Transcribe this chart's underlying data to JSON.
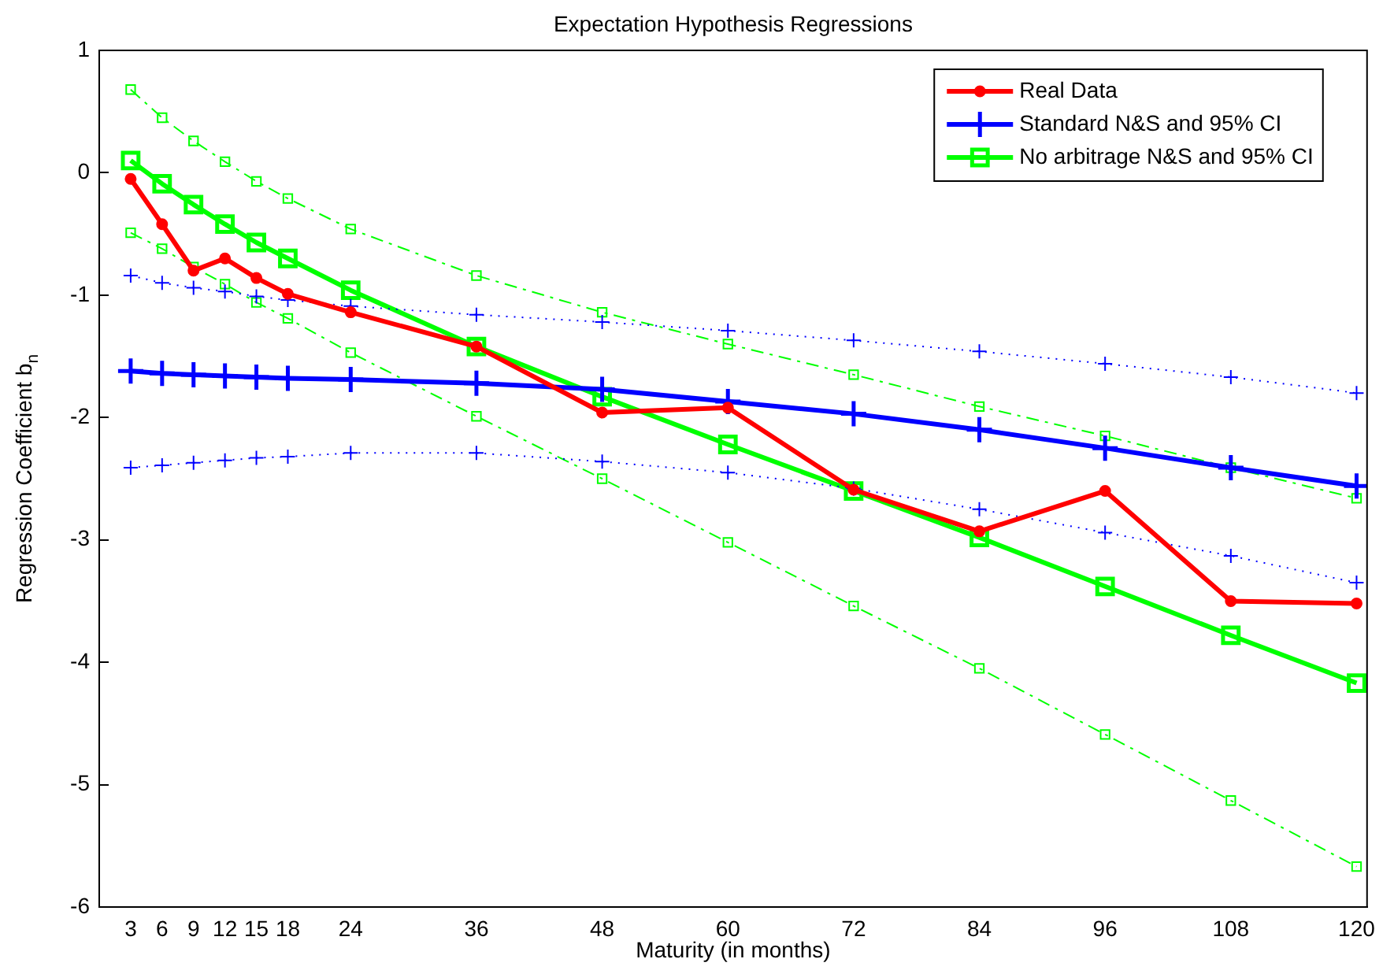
{
  "chart_data": {
    "type": "line",
    "title": "Expectation Hypothesis Regressions",
    "xlabel": "Maturity (in months)",
    "ylabel": "Regression Coefficient b$_{n}$",
    "x": [
      3,
      6,
      9,
      12,
      15,
      18,
      24,
      36,
      48,
      60,
      72,
      84,
      96,
      108,
      120
    ],
    "xlim": [
      0,
      121
    ],
    "xticks": [
      3,
      6,
      9,
      12,
      15,
      18,
      24,
      36,
      48,
      60,
      72,
      84,
      96,
      108,
      120
    ],
    "ylim": [
      -6,
      1
    ],
    "yticks": [
      -6,
      -5,
      -4,
      -3,
      -2,
      -1,
      0,
      1
    ],
    "grid": false,
    "legend": "top right",
    "series": [
      {
        "name": "Real Data",
        "color": "#ff0000",
        "marker": "circle",
        "line_style": "solid",
        "values": [
          -0.05,
          -0.42,
          -0.8,
          -0.7,
          -0.86,
          -0.99,
          -1.14,
          -1.42,
          -1.96,
          -1.92,
          -2.59,
          -2.93,
          -2.6,
          -3.5,
          -3.52
        ]
      },
      {
        "name": "Standard N&S and 95% CI",
        "color": "#0000ff",
        "marker": "cross",
        "line_style": "solid",
        "values": [
          -1.62,
          -1.64,
          -1.65,
          -1.66,
          -1.67,
          -1.68,
          -1.69,
          -1.72,
          -1.77,
          -1.87,
          -1.97,
          -2.1,
          -2.25,
          -2.41,
          -2.56
        ]
      },
      {
        "color": "#0000ff",
        "marker": "cross",
        "line_style": "dotted",
        "values": [
          -0.84,
          -0.9,
          -0.94,
          -0.97,
          -1.01,
          -1.04,
          -1.09,
          -1.16,
          -1.22,
          -1.29,
          -1.37,
          -1.46,
          -1.56,
          -1.67,
          -1.8
        ]
      },
      {
        "color": "#0000ff",
        "marker": "cross",
        "line_style": "dotted",
        "values": [
          -2.41,
          -2.39,
          -2.37,
          -2.35,
          -2.33,
          -2.32,
          -2.29,
          -2.29,
          -2.36,
          -2.45,
          -2.58,
          -2.75,
          -2.94,
          -3.13,
          -3.35
        ]
      },
      {
        "name": "No arbitrage N&S and 95% CI",
        "color": "#00ff00",
        "marker": "square",
        "line_style": "solid",
        "values": [
          0.1,
          -0.09,
          -0.26,
          -0.42,
          -0.57,
          -0.7,
          -0.96,
          -1.42,
          -1.83,
          -2.22,
          -2.6,
          -2.98,
          -3.38,
          -3.78,
          -4.17
        ]
      },
      {
        "color": "#00ff00",
        "marker": "square",
        "line_style": "dashed",
        "values": [
          0.68,
          0.45,
          0.26,
          0.09,
          -0.07,
          -0.21,
          -0.46,
          -0.84,
          -1.14,
          -1.4,
          -1.65,
          -1.91,
          -2.15,
          -2.41,
          -2.66
        ]
      },
      {
        "color": "#00ff00",
        "marker": "square",
        "line_style": "dashed",
        "values": [
          -0.49,
          -0.62,
          -0.77,
          -0.91,
          -1.06,
          -1.19,
          -1.47,
          -1.99,
          -2.5,
          -3.02,
          -3.54,
          -4.05,
          -4.59,
          -5.13,
          -5.67
        ]
      }
    ]
  }
}
